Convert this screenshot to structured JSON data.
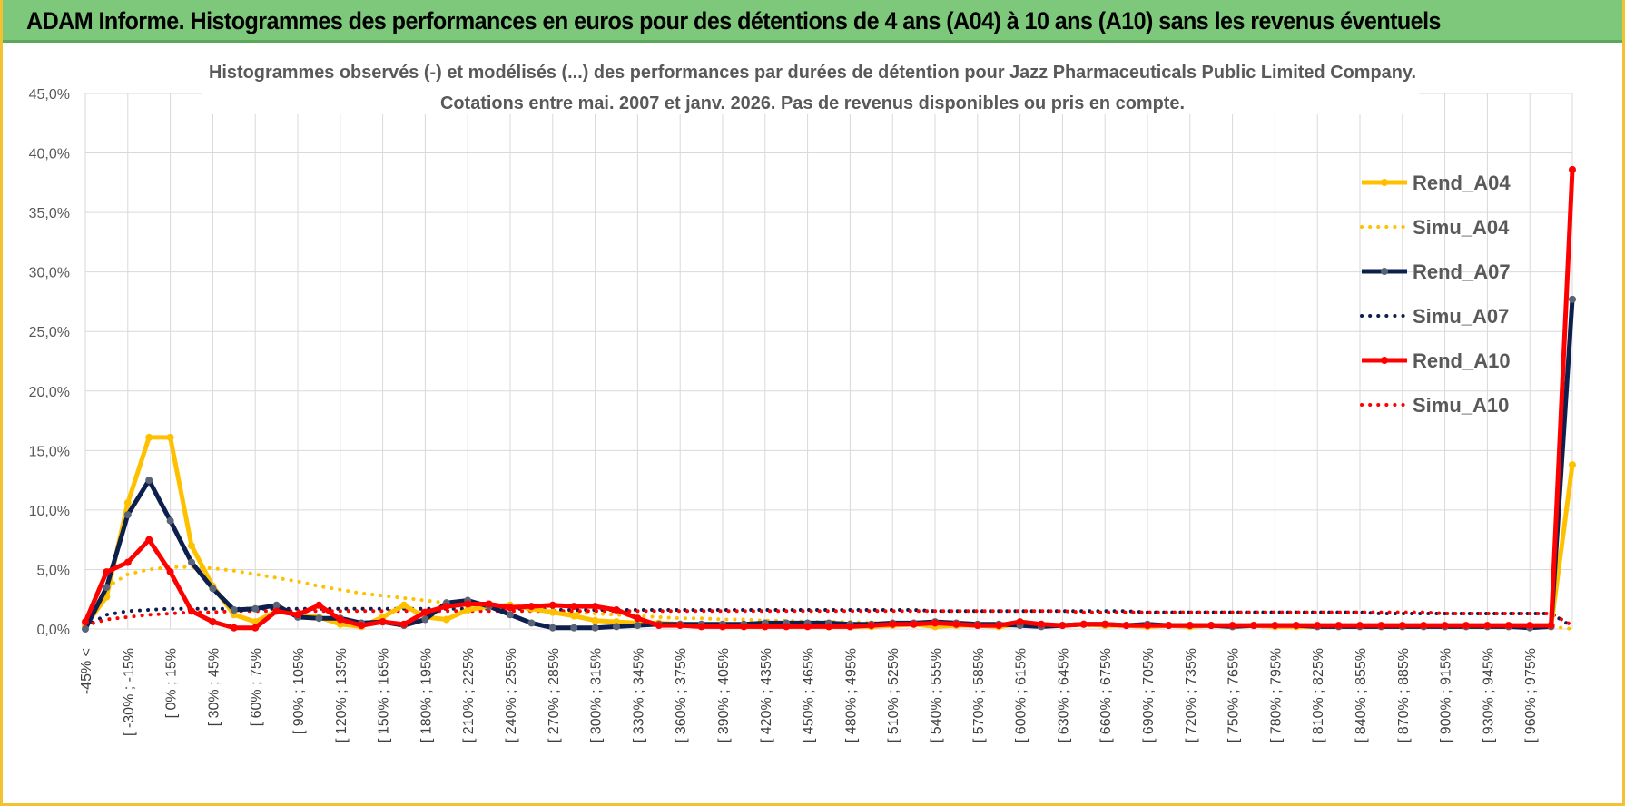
{
  "header": {
    "title": "ADAM Informe. Histogrammes des performances en euros pour des détentions de 4 ans (A04) à 10 ans (A10) sans les revenus éventuels"
  },
  "chart_data": {
    "type": "line",
    "title": "Histogrammes observés (-) et modélisés (...) des performances par durées de détention pour Jazz Pharmaceuticals Public Limited Company.",
    "subtitle": "Cotations entre mai. 2007 et janv. 2026.  Pas de revenus disponibles ou pris en compte.",
    "ylim": [
      0,
      45
    ],
    "y_ticks": [
      "0,0%",
      "5,0%",
      "10,0%",
      "15,0%",
      "20,0%",
      "25,0%",
      "30,0%",
      "35,0%",
      "40,0%",
      "45,0%"
    ],
    "x_tick_labels": [
      "-45% <",
      "[ -30% ; -15%",
      "[ 0% ; 15%",
      "[ 30% ; 45%",
      "[ 60% ; 75%",
      "[ 90% ; 105%",
      "[ 120% ; 135%",
      "[ 150% ; 165%",
      "[ 180% ; 195%",
      "[ 210% ; 225%",
      "[ 240% ; 255%",
      "[ 270% ; 285%",
      "[ 300% ; 315%",
      "[ 330% ; 345%",
      "[ 360% ; 375%",
      "[ 390% ; 405%",
      "[ 420% ; 435%",
      "[ 450% ; 465%",
      "[ 480% ; 495%",
      "[ 510% ; 525%",
      "[ 540% ; 555%",
      "[ 570% ; 585%",
      "[ 600% ; 615%",
      "[ 630% ; 645%",
      "[ 660% ; 675%",
      "[ 690% ; 705%",
      "[ 720% ; 735%",
      "[ 750% ; 765%",
      "[ 780% ; 795%",
      "[ 810% ; 825%",
      "[ 840% ; 855%",
      "[ 870% ; 885%",
      "[ 900% ; 915%",
      "[ 930% ; 945%",
      "[ 960% ; 975%"
    ],
    "n_points": 71,
    "grid": true,
    "legend_position": "right",
    "series": [
      {
        "name": "Rend_A04",
        "style": "solid",
        "color": "#ffc000",
        "values": [
          0.3,
          2.7,
          10.6,
          16.1,
          16.1,
          7.0,
          3.6,
          1.2,
          0.6,
          1.5,
          1.2,
          1.0,
          0.4,
          0.2,
          1.0,
          2.0,
          1.0,
          0.8,
          1.6,
          1.9,
          2.0,
          1.7,
          1.4,
          1.1,
          0.7,
          0.6,
          0.5,
          0.5,
          0.4,
          0.3,
          0.2,
          0.2,
          0.2,
          0.3,
          0.3,
          0.2,
          0.2,
          0.2,
          0.3,
          0.4,
          0.2,
          0.3,
          0.3,
          0.2,
          0.4,
          0.3,
          0.3,
          0.4,
          0.3,
          0.3,
          0.2,
          0.3,
          0.2,
          0.3,
          0.2,
          0.3,
          0.2,
          0.2,
          0.2,
          0.2,
          0.2,
          0.2,
          0.2,
          0.2,
          0.2,
          0.2,
          0.2,
          0.2,
          0.2,
          0.2,
          13.8
        ]
      },
      {
        "name": "Simu_A04",
        "style": "dotted",
        "color": "#ffc000",
        "values": [
          0.5,
          3.5,
          4.6,
          5.0,
          5.2,
          5.2,
          5.1,
          4.9,
          4.6,
          4.3,
          4.0,
          3.6,
          3.3,
          3.0,
          2.8,
          2.6,
          2.4,
          2.2,
          2.0,
          1.9,
          1.8,
          1.6,
          1.5,
          1.4,
          1.3,
          1.2,
          1.1,
          1.0,
          0.9,
          0.9,
          0.8,
          0.8,
          0.7,
          0.7,
          0.6,
          0.6,
          0.6,
          0.5,
          0.5,
          0.5,
          0.5,
          0.4,
          0.4,
          0.4,
          0.4,
          0.4,
          0.3,
          0.3,
          0.3,
          0.3,
          0.3,
          0.3,
          0.3,
          0.2,
          0.2,
          0.2,
          0.2,
          0.2,
          0.2,
          0.2,
          0.2,
          0.2,
          0.2,
          0.2,
          0.2,
          0.2,
          0.2,
          0.2,
          0.2,
          0.2,
          0.0
        ]
      },
      {
        "name": "Rend_A07",
        "style": "solid",
        "color": "#0c1f4d",
        "values": [
          0.0,
          3.5,
          9.6,
          12.5,
          9.1,
          5.6,
          3.4,
          1.6,
          1.7,
          2.0,
          1.0,
          0.9,
          0.9,
          0.5,
          0.6,
          0.3,
          0.8,
          2.2,
          2.4,
          1.9,
          1.2,
          0.5,
          0.1,
          0.1,
          0.1,
          0.2,
          0.3,
          0.4,
          0.4,
          0.4,
          0.4,
          0.4,
          0.5,
          0.5,
          0.5,
          0.5,
          0.4,
          0.4,
          0.5,
          0.5,
          0.6,
          0.5,
          0.4,
          0.4,
          0.3,
          0.2,
          0.3,
          0.4,
          0.4,
          0.3,
          0.4,
          0.3,
          0.3,
          0.3,
          0.2,
          0.3,
          0.3,
          0.3,
          0.2,
          0.2,
          0.2,
          0.2,
          0.2,
          0.2,
          0.2,
          0.2,
          0.2,
          0.2,
          0.1,
          0.2,
          27.7
        ]
      },
      {
        "name": "Simu_A07",
        "style": "dotted",
        "color": "#0c1f4d",
        "values": [
          0.2,
          1.2,
          1.5,
          1.6,
          1.7,
          1.7,
          1.7,
          1.7,
          1.7,
          1.7,
          1.7,
          1.7,
          1.7,
          1.7,
          1.7,
          1.7,
          1.7,
          1.7,
          1.7,
          1.7,
          1.7,
          1.7,
          1.6,
          1.6,
          1.6,
          1.6,
          1.6,
          1.6,
          1.6,
          1.6,
          1.6,
          1.6,
          1.6,
          1.6,
          1.6,
          1.6,
          1.6,
          1.6,
          1.6,
          1.6,
          1.5,
          1.5,
          1.5,
          1.5,
          1.5,
          1.5,
          1.5,
          1.5,
          1.5,
          1.5,
          1.4,
          1.4,
          1.4,
          1.4,
          1.4,
          1.4,
          1.4,
          1.4,
          1.4,
          1.4,
          1.4,
          1.3,
          1.3,
          1.3,
          1.3,
          1.3,
          1.3,
          1.3,
          1.3,
          1.3,
          0.2
        ]
      },
      {
        "name": "Rend_A10",
        "style": "solid",
        "color": "#ff0000",
        "values": [
          0.6,
          4.8,
          5.6,
          7.5,
          4.8,
          1.5,
          0.6,
          0.1,
          0.1,
          1.5,
          1.2,
          2.0,
          0.8,
          0.3,
          0.6,
          0.4,
          1.4,
          1.9,
          2.1,
          2.1,
          1.8,
          1.9,
          2.0,
          1.9,
          1.9,
          1.6,
          0.9,
          0.3,
          0.3,
          0.2,
          0.2,
          0.2,
          0.2,
          0.2,
          0.2,
          0.2,
          0.2,
          0.3,
          0.4,
          0.4,
          0.5,
          0.4,
          0.3,
          0.3,
          0.6,
          0.4,
          0.3,
          0.4,
          0.4,
          0.3,
          0.3,
          0.3,
          0.3,
          0.3,
          0.3,
          0.3,
          0.3,
          0.3,
          0.3,
          0.3,
          0.3,
          0.3,
          0.3,
          0.3,
          0.3,
          0.3,
          0.3,
          0.3,
          0.3,
          0.3,
          38.6
        ]
      },
      {
        "name": "Simu_A10",
        "style": "dotted",
        "color": "#ff0000",
        "values": [
          0.3,
          0.8,
          1.0,
          1.2,
          1.3,
          1.4,
          1.4,
          1.5,
          1.5,
          1.5,
          1.5,
          1.5,
          1.5,
          1.5,
          1.5,
          1.5,
          1.5,
          1.5,
          1.5,
          1.5,
          1.5,
          1.5,
          1.5,
          1.5,
          1.5,
          1.5,
          1.5,
          1.5,
          1.5,
          1.5,
          1.5,
          1.5,
          1.5,
          1.5,
          1.5,
          1.5,
          1.5,
          1.5,
          1.5,
          1.5,
          1.5,
          1.5,
          1.5,
          1.5,
          1.5,
          1.5,
          1.5,
          1.4,
          1.4,
          1.4,
          1.4,
          1.4,
          1.4,
          1.4,
          1.4,
          1.4,
          1.4,
          1.4,
          1.4,
          1.4,
          1.4,
          1.4,
          1.4,
          1.4,
          1.3,
          1.3,
          1.3,
          1.3,
          1.3,
          1.3,
          0.3
        ]
      }
    ]
  }
}
